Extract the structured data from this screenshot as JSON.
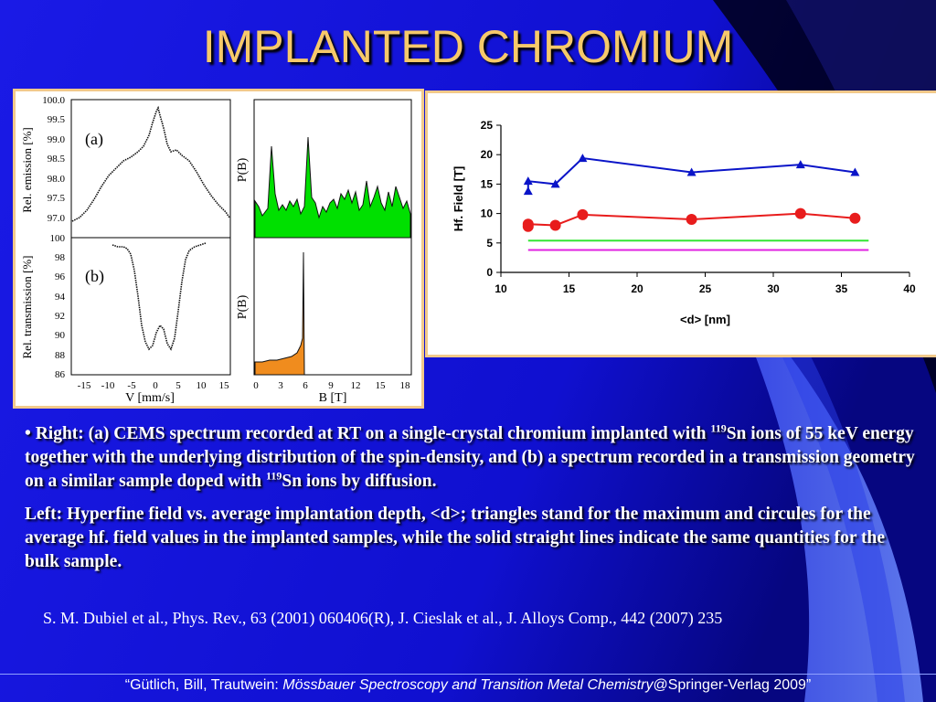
{
  "title": "IMPLANTED CHROMIUM",
  "left_figure": {
    "panel_a": {
      "tag": "(a)",
      "ylabel": "Rel. emission [%]",
      "yticks": [
        "100.0",
        "99.5",
        "99.0",
        "98.5",
        "98.0",
        "97.5",
        "97.0"
      ],
      "pb_label": "P(B)"
    },
    "panel_b": {
      "tag": "(b)",
      "ylabel": "Rel. transmission [%]",
      "yticks": [
        "100",
        "98",
        "96",
        "94",
        "92",
        "90",
        "88",
        "86"
      ],
      "pb_label": "P(B)"
    },
    "xticks_v": [
      "-15",
      "-10",
      "-5",
      "0",
      "5",
      "10",
      "15"
    ],
    "xlabel_v": "V [mm/s]",
    "xticks_b": [
      "0",
      "3",
      "6",
      "9",
      "12",
      "15",
      "18"
    ],
    "xlabel_b": "B [T]",
    "colors": {
      "pb_a": "#00e000",
      "pb_b": "#f08c1e"
    }
  },
  "chart_data": {
    "type": "line",
    "xlabel": "<d> [nm]",
    "ylabel": "Hf. Field [T]",
    "xlim": [
      10,
      40
    ],
    "ylim": [
      0,
      25
    ],
    "xticks": [
      "10",
      "15",
      "20",
      "25",
      "30",
      "35",
      "40"
    ],
    "yticks": [
      "0",
      "5",
      "10",
      "15",
      "20",
      "25"
    ],
    "series": [
      {
        "marker": "triangle",
        "color": "#0a14c8",
        "x": [
          12,
          12,
          14,
          16,
          24,
          32,
          36
        ],
        "y": [
          13.8,
          15.5,
          15.0,
          19.4,
          17.0,
          18.3,
          17.0
        ]
      },
      {
        "marker": "circle",
        "color": "#e81c1c",
        "x": [
          12,
          12,
          14,
          16,
          24,
          32,
          36
        ],
        "y": [
          7.8,
          8.2,
          8.0,
          9.8,
          9.0,
          10.0,
          9.2
        ]
      },
      {
        "marker": "none",
        "color": "#33e633",
        "x": [
          12,
          37
        ],
        "y": [
          5.4,
          5.4
        ]
      },
      {
        "marker": "none",
        "color": "#e020e0",
        "x": [
          12,
          37
        ],
        "y": [
          3.8,
          3.8
        ]
      }
    ]
  },
  "text": {
    "p1_a": "• Right: (a) CEMS spectrum recorded at RT on a single-crystal chromium implanted with ",
    "p1_sup1": "119",
    "p1_b": "Sn ions of 55 keV energy together with the underlying distribution of the spin-density, and (b) a spectrum recorded in a transmission geometry on a similar sample doped with ",
    "p1_sup2": "119",
    "p1_c": "Sn ions by diffusion.",
    "p2": "Left: Hyperfine field vs. average implantation depth, <d>; triangles stand for the maximum and circules for the average hf. field values in the implanted samples, while the solid straight lines indicate the same quantities for the bulk sample."
  },
  "citation": "S. M. Dubiel et al., Phys. Rev., 63 (2001) 060406(R), J. Cieslak et al., J. Alloys Comp., 442 (2007) 235",
  "footer": {
    "part1": "“Gütlich, Bill, Trautwein: ",
    "italic": "Mössbauer Spectroscopy and Transition Metal Chemistry",
    "part2": "@Springer-Verlag 2009”"
  }
}
